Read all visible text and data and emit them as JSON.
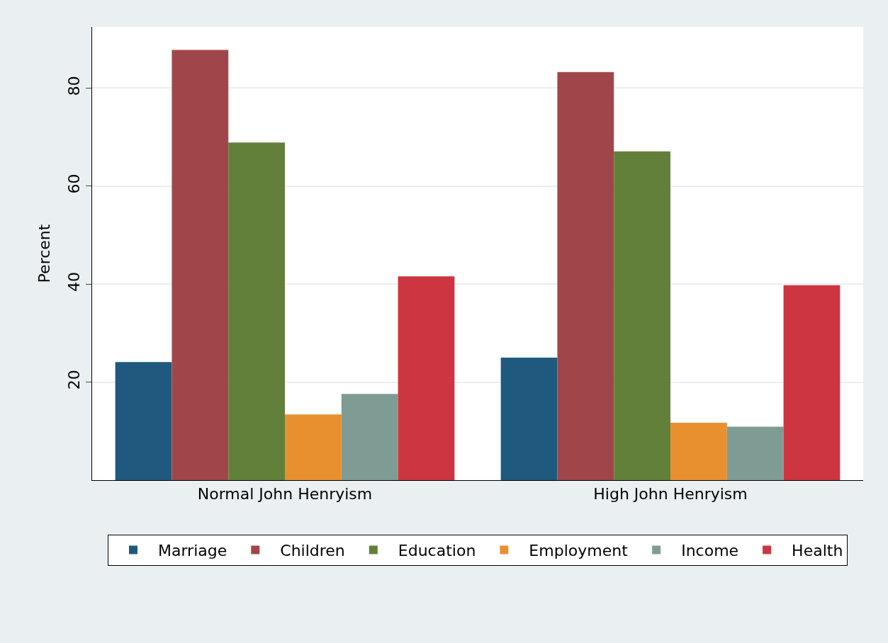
{
  "chart_data": {
    "type": "bar",
    "ylabel": "Percent",
    "categories": [
      "Normal John Henryism",
      "High John Henryism"
    ],
    "series": [
      {
        "name": "Marriage",
        "color": "#1f5a7e",
        "values": [
          24.1,
          25.0
        ]
      },
      {
        "name": "Children",
        "color": "#a0464a",
        "values": [
          87.8,
          83.3
        ]
      },
      {
        "name": "Education",
        "color": "#62803a",
        "values": [
          68.9,
          67.1
        ]
      },
      {
        "name": "Employment",
        "color": "#e8902f",
        "values": [
          13.4,
          11.7
        ]
      },
      {
        "name": "Income",
        "color": "#7f9c94",
        "values": [
          17.6,
          10.9
        ]
      },
      {
        "name": "Health",
        "color": "#cd3640",
        "values": [
          41.6,
          39.8
        ]
      }
    ],
    "ylim": [
      0,
      92.5
    ],
    "yticks": [
      20,
      40,
      60,
      80
    ],
    "grid": "y",
    "legend": "bottom"
  }
}
